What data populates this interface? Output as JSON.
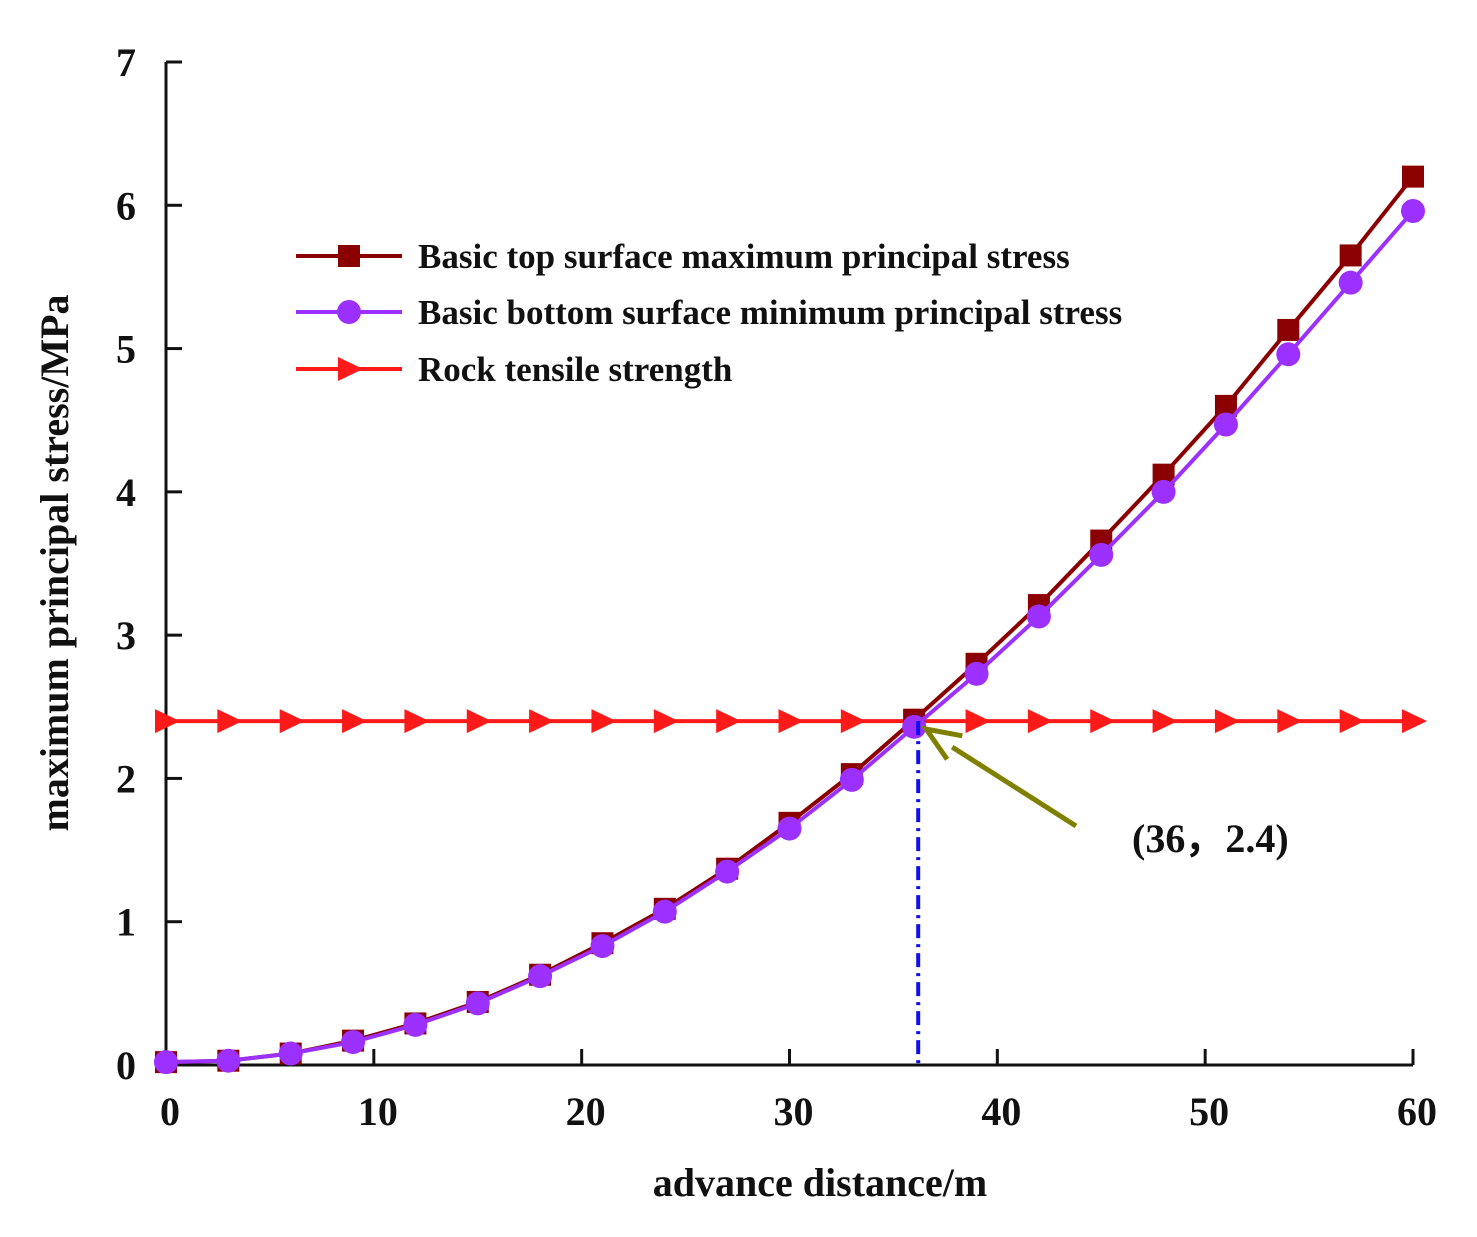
{
  "chart_data": {
    "type": "line",
    "title": "",
    "xlabel": "advance distance/m",
    "ylabel": "maximum principal stress/MPa",
    "xlim": [
      0,
      60
    ],
    "ylim": [
      0,
      7
    ],
    "x_ticks": [
      0,
      10,
      20,
      30,
      40,
      50,
      60
    ],
    "y_ticks": [
      0,
      1,
      2,
      3,
      4,
      5,
      6,
      7
    ],
    "x_tick_labels": [
      "0",
      "10",
      "20",
      "30",
      "40",
      "50",
      "60"
    ],
    "y_tick_labels": [
      "0",
      "1",
      "2",
      "3",
      "4",
      "5",
      "6",
      "7"
    ],
    "grid": false,
    "legend_position": "upper-left",
    "x": [
      0,
      3,
      6,
      9,
      12,
      15,
      18,
      21,
      24,
      27,
      30,
      33,
      36,
      39,
      42,
      45,
      48,
      51,
      54,
      57,
      60
    ],
    "series": [
      {
        "name": "Basic top surface maximum principal stress",
        "marker": "square",
        "color": "#8B0000",
        "values": [
          0.02,
          0.03,
          0.08,
          0.17,
          0.29,
          0.44,
          0.63,
          0.85,
          1.09,
          1.37,
          1.69,
          2.03,
          2.41,
          2.8,
          3.21,
          3.66,
          4.12,
          4.6,
          5.13,
          5.65,
          6.2
        ]
      },
      {
        "name": "Basic bottom surface minimum principal stress",
        "marker": "circle",
        "color": "#9B30FF",
        "values": [
          0.02,
          0.03,
          0.08,
          0.16,
          0.28,
          0.43,
          0.62,
          0.83,
          1.07,
          1.35,
          1.65,
          1.99,
          2.36,
          2.73,
          3.13,
          3.56,
          4.0,
          4.47,
          4.96,
          5.46,
          5.96
        ]
      },
      {
        "name": "Rock tensile strength",
        "marker": "triangle-right",
        "color": "#FF1A1A",
        "values": [
          2.4,
          2.4,
          2.4,
          2.4,
          2.4,
          2.4,
          2.4,
          2.4,
          2.4,
          2.4,
          2.4,
          2.4,
          2.4,
          2.4,
          2.4,
          2.4,
          2.4,
          2.4,
          2.4,
          2.4,
          2.4
        ]
      }
    ],
    "annotation": {
      "text": "(36，2.4)",
      "point": [
        36,
        2.4
      ],
      "arrow_color": "#808000",
      "dropline_color": "#1010EE"
    }
  }
}
